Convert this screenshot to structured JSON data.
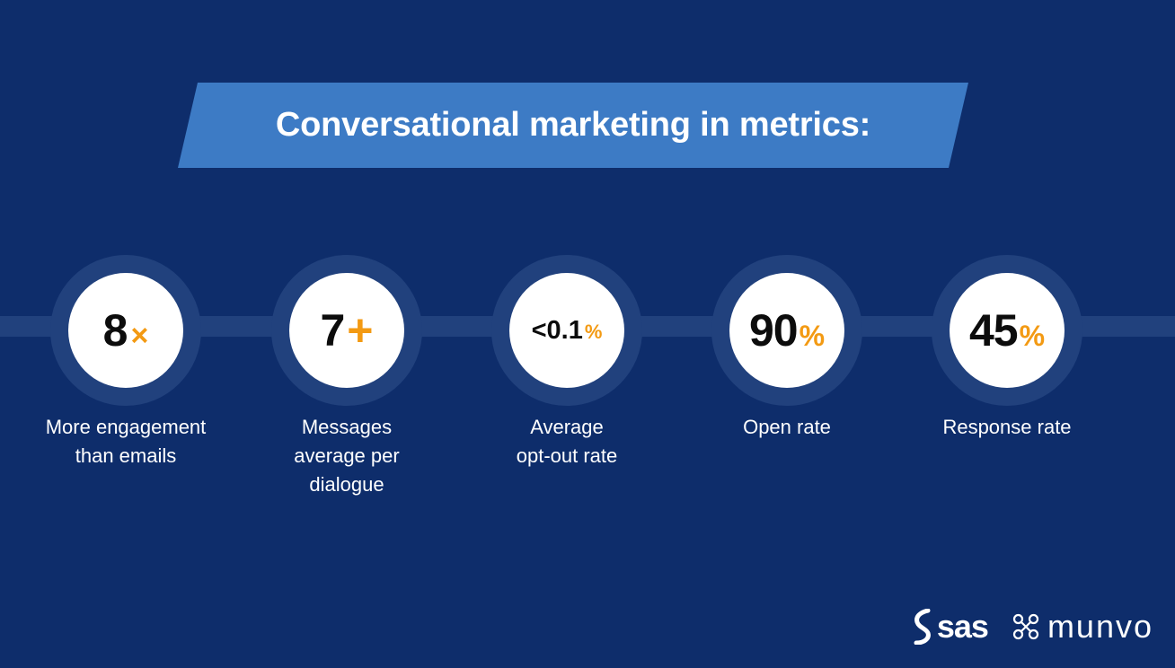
{
  "banner": {
    "title": "Conversational marketing in metrics:"
  },
  "colors": {
    "background": "#0e2d6b",
    "banner": "#3d7bc5",
    "accent": "#f39a13",
    "connector": "#21417d",
    "text": "#ffffff"
  },
  "metrics": [
    {
      "value": "8",
      "suffix": "×",
      "label": [
        "More engagement",
        "than emails"
      ]
    },
    {
      "value": "7",
      "suffix": "+",
      "label": [
        "Messages",
        "average per",
        "dialogue"
      ]
    },
    {
      "value": "<0.1",
      "suffix": "%",
      "label": [
        "Average",
        "opt-out rate"
      ]
    },
    {
      "value": "90",
      "suffix": "%",
      "label": [
        "Open rate"
      ]
    },
    {
      "value": "45",
      "suffix": "%",
      "label": [
        "Response rate"
      ]
    }
  ],
  "logos": {
    "sas": "sas",
    "munvo": "munvo",
    "sas_icon": "sas-s-icon",
    "munvo_icon": "munvo-x-icon"
  }
}
